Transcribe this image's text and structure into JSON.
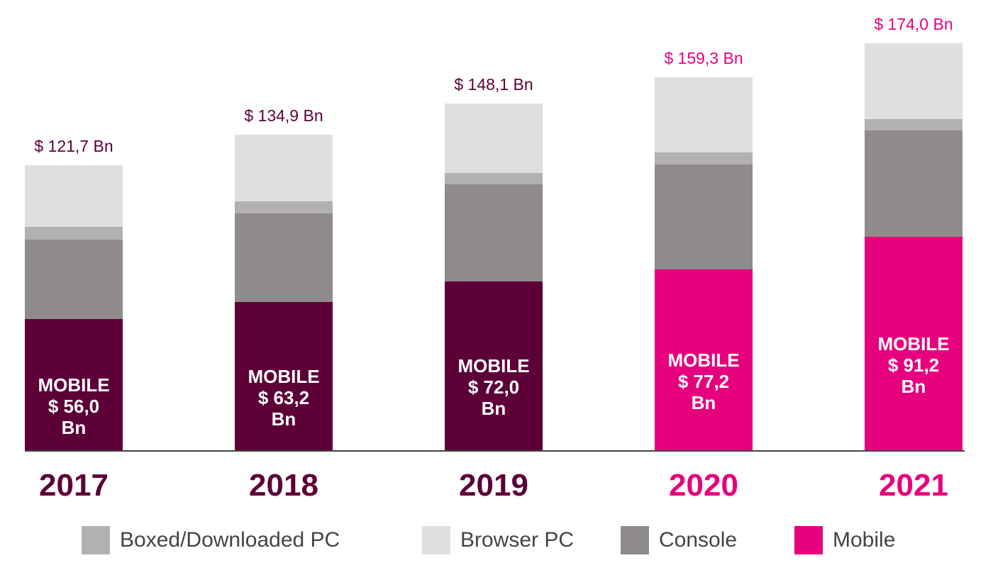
{
  "chart_data": {
    "type": "bar",
    "stacked": true,
    "categories": [
      "2017",
      "2018",
      "2019",
      "2020",
      "2021"
    ],
    "ylim": [
      0,
      180
    ],
    "series": [
      {
        "name": "Mobile",
        "color": "#e6007e",
        "colors": [
          "#5c0037",
          "#5c0037",
          "#5c0037",
          "#e6007e",
          "#e6007e"
        ],
        "values": [
          56.0,
          63.2,
          72.0,
          77.2,
          91.2
        ],
        "value_labels": [
          "MOBILE $ 56,0 Bn",
          "MOBILE $ 63,2 Bn",
          "MOBILE $ 72,0 Bn",
          "MOBILE $ 77,2 Bn",
          "MOBILE $ 91,2 Bn"
        ]
      },
      {
        "name": "Console",
        "color": "#8f8b8b",
        "values": [
          33.9,
          37.9,
          41.5,
          44.9,
          45.6
        ]
      },
      {
        "name": "Boxed/Downloaded PC",
        "color": "#b3b0b0",
        "values": [
          5.6,
          5.3,
          5.1,
          5.1,
          4.6
        ]
      },
      {
        "name": "Browser PC",
        "color": "#e0dede",
        "values": [
          26.2,
          28.5,
          29.5,
          32.1,
          32.6
        ]
      }
    ],
    "totals": {
      "values": [
        121.7,
        134.9,
        148.1,
        159.3,
        174.0
      ],
      "value_labels": [
        "$ 121,7 Bn",
        "$ 134,9 Bn",
        "$ 148,1 Bn",
        "$ 159,3 Bn",
        "$ 174,0 Bn"
      ]
    },
    "legend_order": [
      2,
      3,
      1,
      0
    ]
  }
}
